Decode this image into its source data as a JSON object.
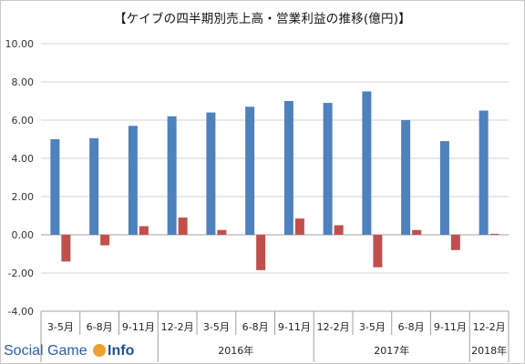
{
  "chart_data": {
    "type": "bar",
    "title": "【ケイブの四半期別売上高・営業利益の推移(億円)】",
    "xlabel": "",
    "ylabel": "",
    "ylim": [
      -4,
      10
    ],
    "yticks": [
      "10.00",
      "8.00",
      "6.00",
      "4.00",
      "2.00",
      "0.00",
      "-2.00",
      "-4.00"
    ],
    "grid": true,
    "legend": "none",
    "categories": [
      "3-5月",
      "6-8月",
      "9-11月",
      "12-2月",
      "3-5月",
      "6-8月",
      "9-11月",
      "12-2月",
      "3-5月",
      "6-8月",
      "9-11月",
      "12-2月"
    ],
    "years": [
      {
        "label": "",
        "start": 0,
        "end": 2
      },
      {
        "label": "2016年",
        "start": 3,
        "end": 6
      },
      {
        "label": "2017年",
        "start": 7,
        "end": 10
      },
      {
        "label": "2018年",
        "start": 11,
        "end": 11
      }
    ],
    "series": [
      {
        "color": "#4f81bd",
        "values": [
          5.0,
          5.05,
          5.7,
          6.2,
          6.4,
          6.7,
          7.0,
          6.9,
          7.5,
          6.0,
          4.9,
          6.5
        ]
      },
      {
        "color": "#c0504d",
        "values": [
          -1.4,
          -0.55,
          0.45,
          0.9,
          0.25,
          -1.85,
          0.85,
          0.5,
          -1.7,
          0.25,
          -0.8,
          0.05
        ]
      }
    ]
  },
  "watermark": {
    "text_part1": "Social Game ",
    "text_part2": "Info"
  }
}
